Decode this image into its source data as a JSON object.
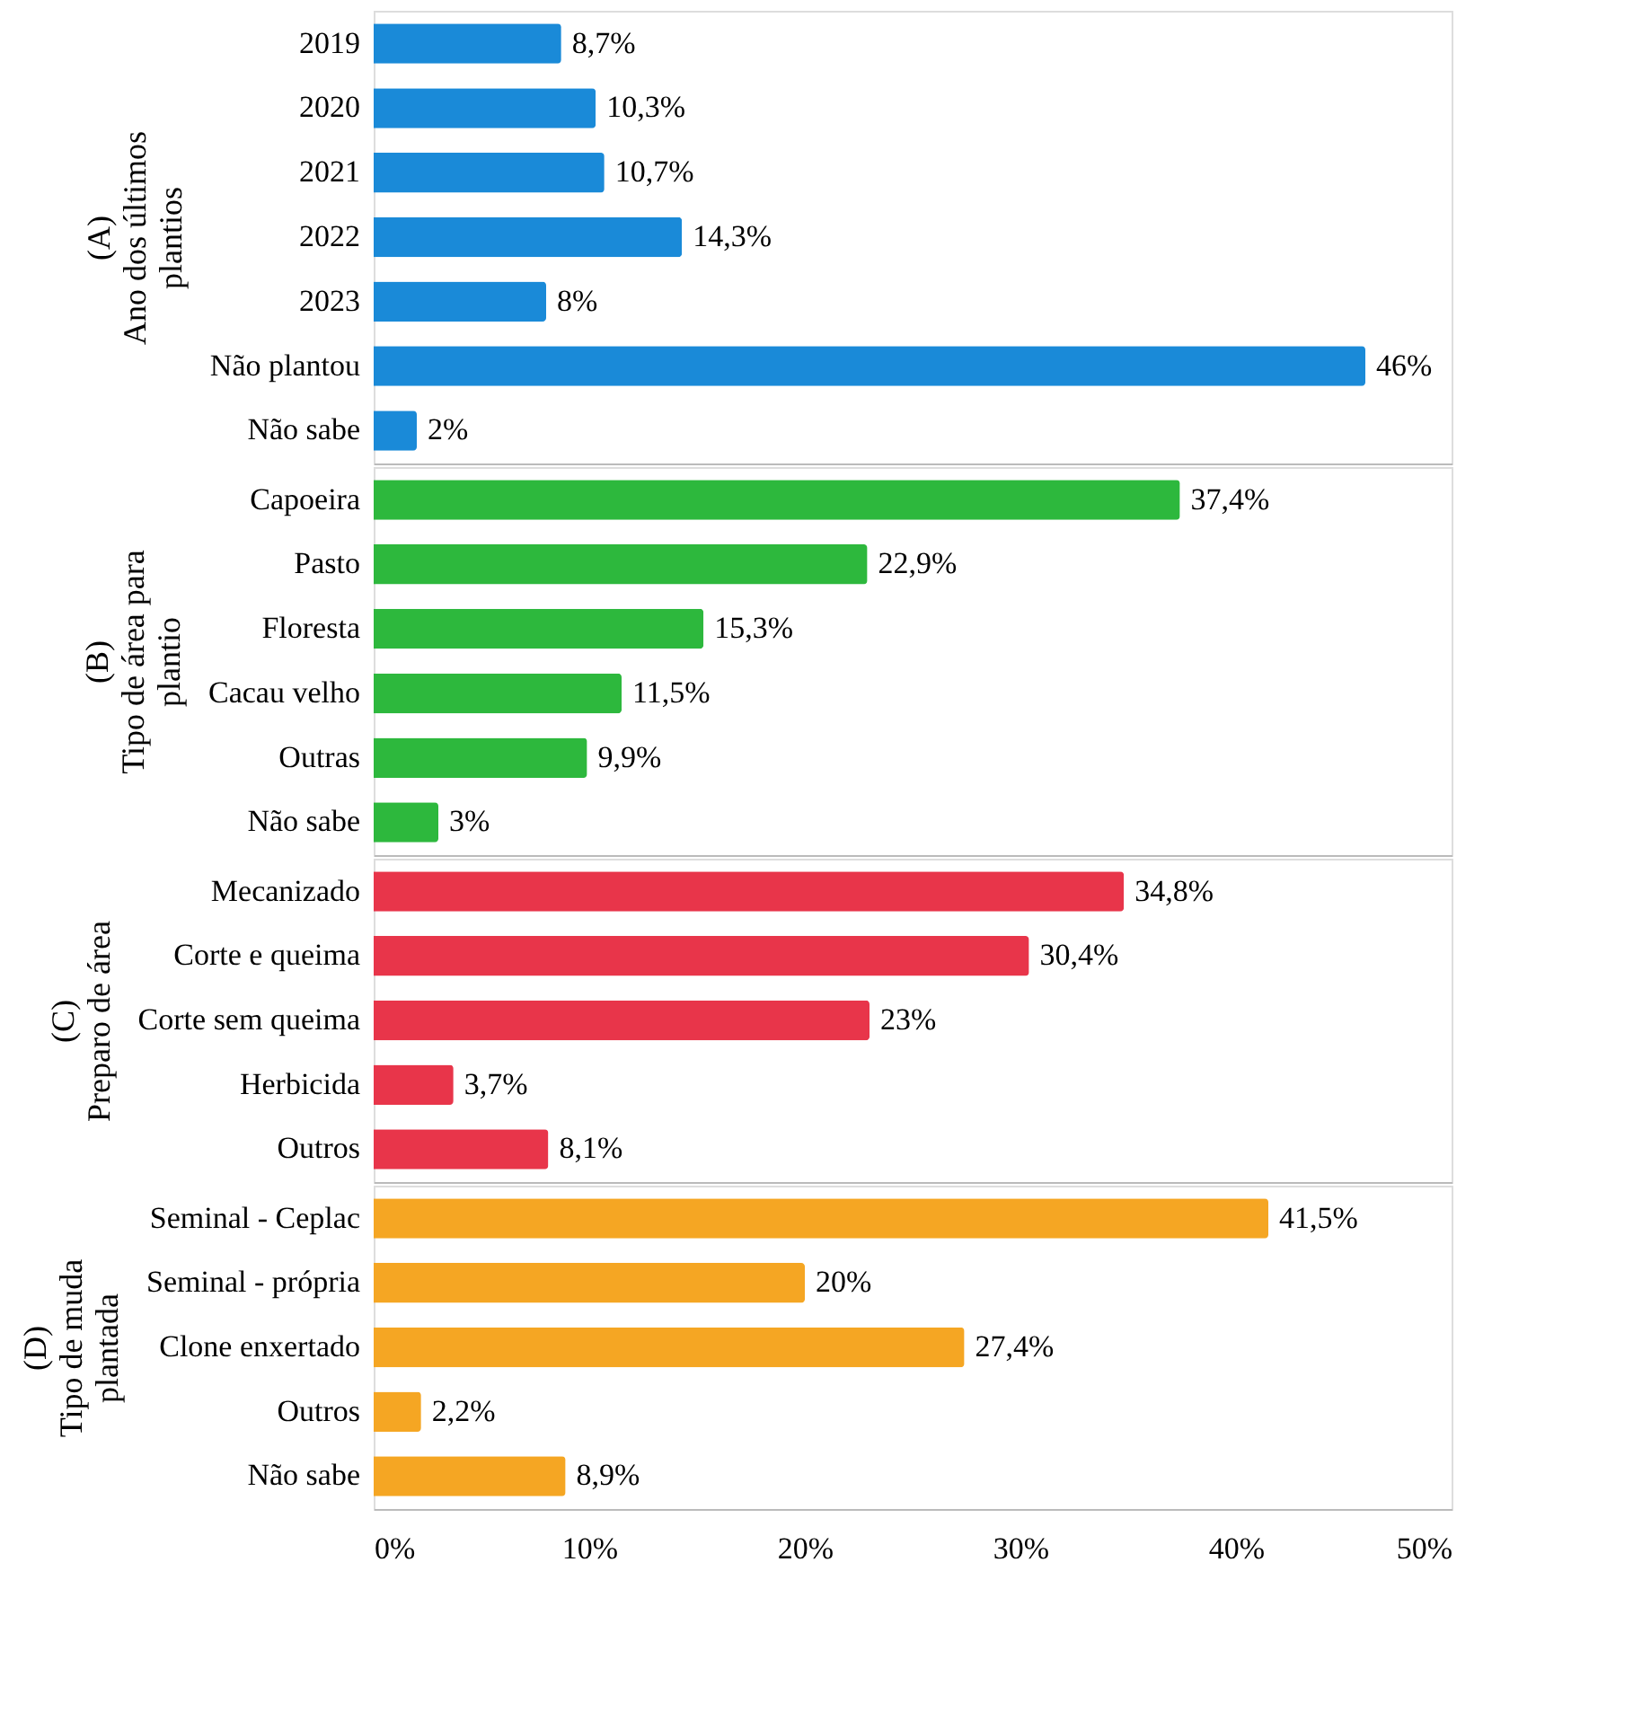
{
  "chart_data": [
    {
      "type": "bar",
      "orientation": "horizontal",
      "ylabel": "(A)\nAno dos últimos\nplantios",
      "categories": [
        "2019",
        "2020",
        "2021",
        "2022",
        "2023",
        "Não plantou",
        "Não sabe"
      ],
      "values": [
        8.7,
        10.3,
        10.7,
        14.3,
        8,
        46,
        2
      ],
      "value_labels": [
        "8,7%",
        "10,3%",
        "10,7%",
        "14,3%",
        "8%",
        "46%",
        "2%"
      ],
      "color": "#1a8ad8",
      "xlim": [
        0,
        50
      ],
      "tick_labels": "y",
      "grid": false
    },
    {
      "type": "bar",
      "orientation": "horizontal",
      "ylabel": "(B)\nTipo de área para\nplantio",
      "categories": [
        "Capoeira",
        "Pasto",
        "Floresta",
        "Cacau velho",
        "Outras",
        "Não sabe"
      ],
      "values": [
        37.4,
        22.9,
        15.3,
        11.5,
        9.9,
        3
      ],
      "value_labels": [
        "37,4%",
        "22,9%",
        "15,3%",
        "11,5%",
        "9,9%",
        "3%"
      ],
      "color": "#2db83d",
      "xlim": [
        0,
        50
      ],
      "tick_labels": "y",
      "grid": false
    },
    {
      "type": "bar",
      "orientation": "horizontal",
      "ylabel": "(C)\nPreparo de área",
      "categories": [
        "Mecanizado",
        "Corte e queima",
        "Corte sem queima",
        "Herbicida",
        "Outros"
      ],
      "values": [
        34.8,
        30.4,
        23,
        3.7,
        8.1
      ],
      "value_labels": [
        "34,8%",
        "30,4%",
        "23%",
        "3,7%",
        "8,1%"
      ],
      "color": "#e8354a",
      "xlim": [
        0,
        50
      ],
      "tick_labels": "y",
      "grid": false
    },
    {
      "type": "bar",
      "orientation": "horizontal",
      "ylabel": "(D)\nTipo de muda\nplantada",
      "categories": [
        "Seminal - Ceplac",
        "Seminal - própria",
        "Clone enxertado",
        "Outros",
        "Não sabe"
      ],
      "values": [
        41.5,
        20,
        27.4,
        2.2,
        8.9
      ],
      "value_labels": [
        "41,5%",
        "20%",
        "27,4%",
        "2,2%",
        "8,9%"
      ],
      "color": "#f5a623",
      "xlim": [
        0,
        50
      ],
      "xticks": [
        {
          "value": 0,
          "label": "0%"
        },
        {
          "value": 10,
          "label": "10%"
        },
        {
          "value": 20,
          "label": "20%"
        },
        {
          "value": 30,
          "label": "30%"
        },
        {
          "value": 40,
          "label": "40%"
        },
        {
          "value": 50,
          "label": "50%"
        }
      ],
      "grid": false
    }
  ]
}
